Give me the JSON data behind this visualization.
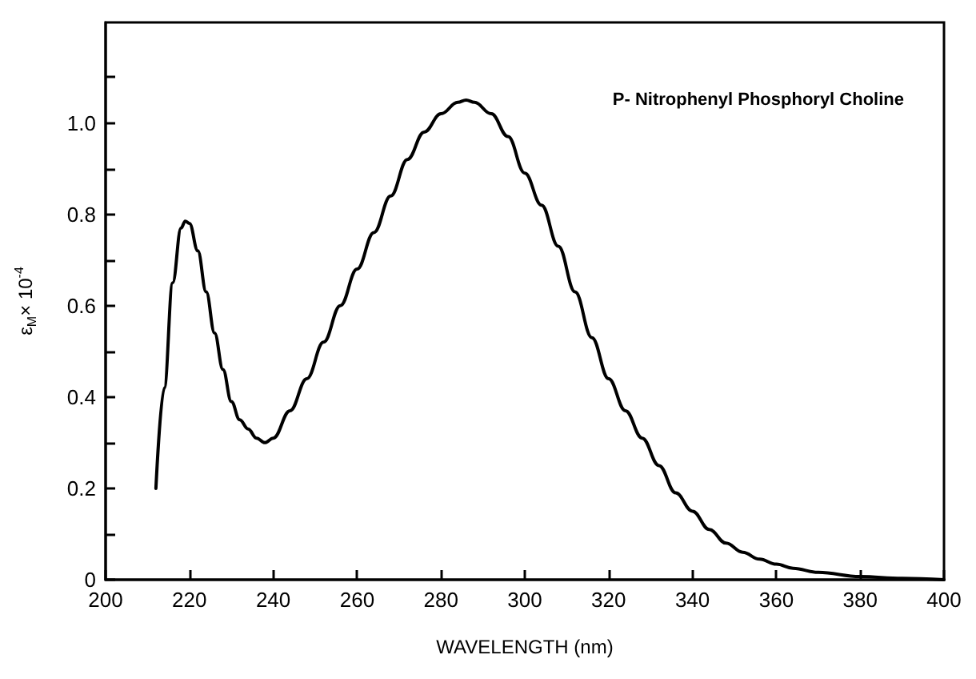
{
  "chart_data": {
    "type": "line",
    "xlabel": "WAVELENGTH (nm)",
    "ylabel": "ε$_{M}$× 10$^{-4}$",
    "annotations": [
      "P- Nitrophenyl Phosphoryl Choline"
    ],
    "x": [
      212,
      214,
      216,
      218,
      219,
      220,
      222,
      224,
      226,
      228,
      230,
      232,
      234,
      236,
      238,
      240,
      244,
      248,
      252,
      256,
      260,
      264,
      268,
      272,
      276,
      280,
      284,
      286,
      288,
      292,
      296,
      300,
      304,
      308,
      312,
      316,
      320,
      324,
      328,
      332,
      336,
      340,
      344,
      348,
      352,
      356,
      360,
      364,
      370,
      380,
      390,
      400
    ],
    "series": [
      {
        "color": "#000000",
        "values": [
          0.2,
          0.42,
          0.65,
          0.77,
          0.785,
          0.78,
          0.72,
          0.63,
          0.54,
          0.46,
          0.39,
          0.35,
          0.33,
          0.31,
          0.3,
          0.31,
          0.37,
          0.44,
          0.52,
          0.6,
          0.68,
          0.76,
          0.84,
          0.92,
          0.98,
          1.02,
          1.045,
          1.05,
          1.045,
          1.02,
          0.97,
          0.89,
          0.82,
          0.73,
          0.63,
          0.53,
          0.44,
          0.37,
          0.31,
          0.25,
          0.19,
          0.15,
          0.11,
          0.08,
          0.06,
          0.045,
          0.034,
          0.025,
          0.016,
          0.007,
          0.003,
          0.0
        ]
      }
    ],
    "xlim": [
      200,
      400
    ],
    "xticks": [
      200,
      220,
      240,
      260,
      280,
      300,
      320,
      340,
      360,
      380,
      400
    ],
    "ylim": [
      0,
      1.22
    ],
    "yticks": [
      0,
      {
        "value": 0.1,
        "label": null
      },
      0.2,
      {
        "value": 0.3,
        "label": null
      },
      0.4,
      {
        "value": 0.5,
        "label": null
      },
      0.6,
      {
        "value": 0.7,
        "label": null
      },
      0.8,
      {
        "value": 0.9,
        "label": null
      },
      {
        "value": 1.0,
        "label": "1.0"
      },
      {
        "value": 1.1,
        "label": null
      }
    ],
    "grid": false,
    "marker": "none",
    "line_style": "solid"
  }
}
